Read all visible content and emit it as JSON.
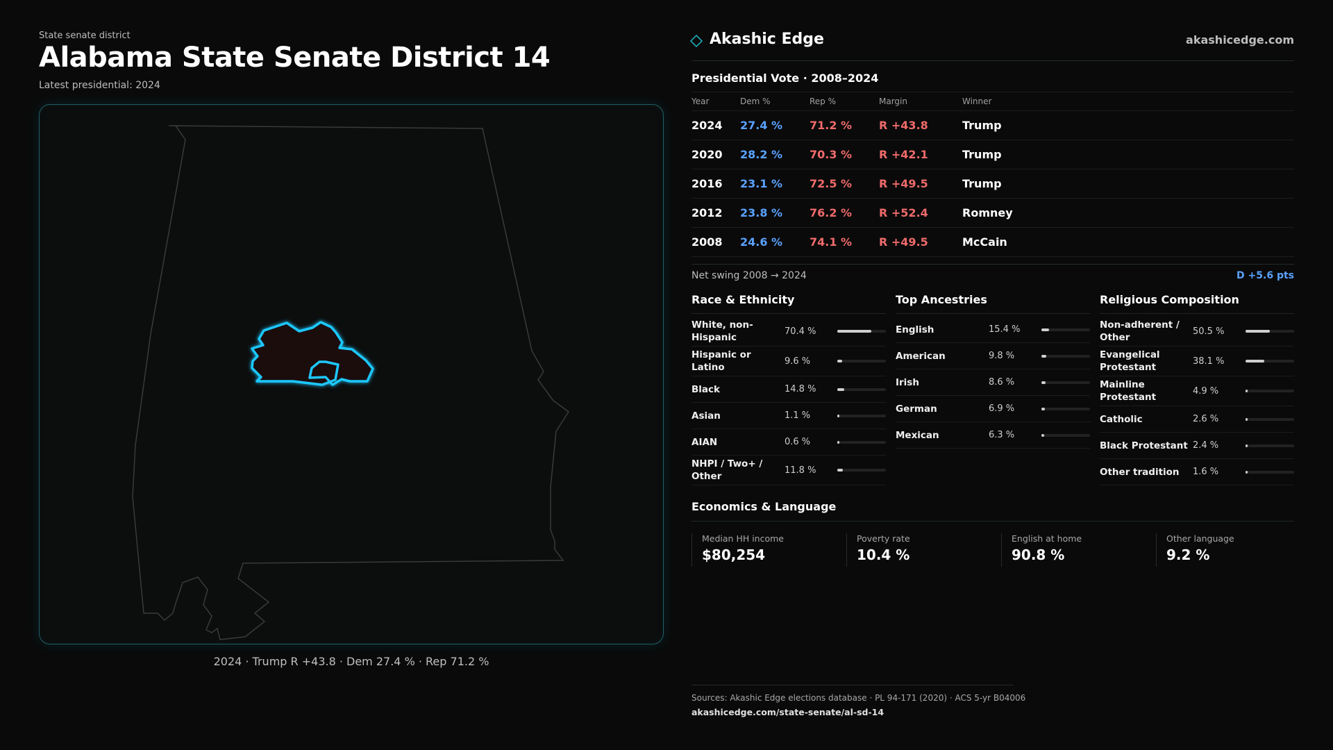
{
  "header": {
    "eyebrow": "State senate district",
    "title": "Alabama State Senate District 14",
    "subtitle": "Latest presidential: 2024"
  },
  "map": {
    "caption": "2024 · Trump R +43.8 · Dem 27.4 % · Rep 71.2 %"
  },
  "brand": {
    "name": "Akashic Edge",
    "url": "akashicedge.com",
    "icon": "diamond-icon"
  },
  "presidential": {
    "title": "Presidential Vote · 2008–2024",
    "columns": [
      "Year",
      "Dem %",
      "Rep %",
      "Margin",
      "Winner"
    ],
    "rows": [
      {
        "year": "2024",
        "dem": "27.4 %",
        "rep": "71.2 %",
        "margin": "R +43.8",
        "winner": "Trump"
      },
      {
        "year": "2020",
        "dem": "28.2 %",
        "rep": "70.3 %",
        "margin": "R +42.1",
        "winner": "Trump"
      },
      {
        "year": "2016",
        "dem": "23.1 %",
        "rep": "72.5 %",
        "margin": "R +49.5",
        "winner": "Trump"
      },
      {
        "year": "2012",
        "dem": "23.8 %",
        "rep": "76.2 %",
        "margin": "R +52.4",
        "winner": "Romney"
      },
      {
        "year": "2008",
        "dem": "24.6 %",
        "rep": "74.1 %",
        "margin": "R +49.5",
        "winner": "McCain"
      }
    ],
    "swing_label": "Net swing 2008 → 2024",
    "swing_value": "D +5.6 pts"
  },
  "race": {
    "title": "Race & Ethnicity",
    "rows": [
      {
        "label": "White, non-Hispanic",
        "value": "70.4 %",
        "pct": 70.4
      },
      {
        "label": "Hispanic or Latino",
        "value": "9.6 %",
        "pct": 9.6
      },
      {
        "label": "Black",
        "value": "14.8 %",
        "pct": 14.8
      },
      {
        "label": "Asian",
        "value": "1.1 %",
        "pct": 1.1
      },
      {
        "label": "AIAN",
        "value": "0.6 %",
        "pct": 0.6
      },
      {
        "label": "NHPI / Two+ / Other",
        "value": "11.8 %",
        "pct": 11.8
      }
    ]
  },
  "ancestry": {
    "title": "Top Ancestries",
    "rows": [
      {
        "label": "English",
        "value": "15.4 %",
        "pct": 15.4
      },
      {
        "label": "American",
        "value": "9.8 %",
        "pct": 9.8
      },
      {
        "label": "Irish",
        "value": "8.6 %",
        "pct": 8.6
      },
      {
        "label": "German",
        "value": "6.9 %",
        "pct": 6.9
      },
      {
        "label": "Mexican",
        "value": "6.3 %",
        "pct": 6.3
      }
    ]
  },
  "religion": {
    "title": "Religious Composition",
    "rows": [
      {
        "label": "Non-adherent / Other",
        "value": "50.5 %",
        "pct": 50.5
      },
      {
        "label": "Evangelical Protestant",
        "value": "38.1 %",
        "pct": 38.1
      },
      {
        "label": "Mainline Protestant",
        "value": "4.9 %",
        "pct": 4.9
      },
      {
        "label": "Catholic",
        "value": "2.6 %",
        "pct": 2.6
      },
      {
        "label": "Black Protestant",
        "value": "2.4 %",
        "pct": 2.4
      },
      {
        "label": "Other tradition",
        "value": "1.6 %",
        "pct": 1.6
      }
    ]
  },
  "economics": {
    "title": "Economics & Language",
    "items": [
      {
        "label": "Median HH income",
        "value": "$80,254"
      },
      {
        "label": "Poverty rate",
        "value": "10.4 %"
      },
      {
        "label": "English at home",
        "value": "90.8 %"
      },
      {
        "label": "Other language",
        "value": "9.2 %"
      }
    ]
  },
  "footer": {
    "sources": "Sources: Akashic Edge elections database · PL 94-171 (2020) · ACS 5-yr B04006",
    "url": "akashicedge.com/state-senate/al-sd-14"
  },
  "colors": {
    "dem": "#5aa2ff",
    "rep": "#f06b6b",
    "highlight": "#1ec8ff",
    "district_fill": "#1c0c0e"
  }
}
